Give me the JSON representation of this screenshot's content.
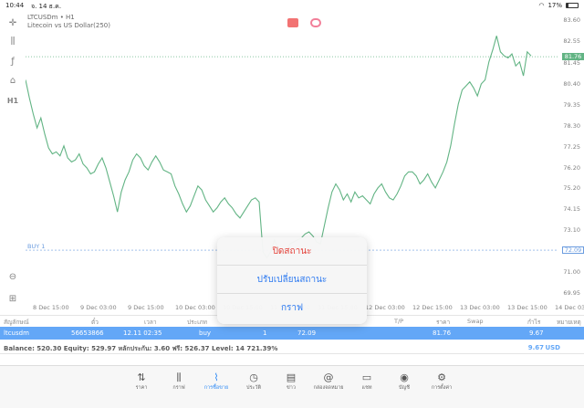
{
  "status": {
    "time": "10:44",
    "date": "จ. 14 ธ.ค.",
    "battery": "17%"
  },
  "toolbar_left": [
    {
      "name": "crosshair-icon",
      "glyph": "✛"
    },
    {
      "name": "candles-icon",
      "glyph": "⫼"
    },
    {
      "name": "indicators-icon",
      "glyph": "ƒ"
    },
    {
      "name": "objects-icon",
      "glyph": "⌂"
    },
    {
      "name": "timeframe-button",
      "glyph": "H1"
    },
    {
      "name": "zoom-icon",
      "glyph": "⊖"
    },
    {
      "name": "new-order-icon",
      "glyph": "⊞"
    }
  ],
  "chart": {
    "symbol": "LTCUSDm • H1",
    "description": "Litecoin vs US Dollar(250)",
    "current_price": "81.76",
    "buy_label": "BUY 1",
    "buy_price": "72.09",
    "price_ticks": [
      "83.60",
      "82.55",
      "81.45",
      "80.40",
      "79.35",
      "78.30",
      "77.25",
      "76.20",
      "75.20",
      "74.15",
      "73.10",
      "72.05",
      "71.00",
      "69.95"
    ],
    "time_ticks": [
      "8 Dec 15:00",
      "9 Dec 03:00",
      "9 Dec 15:00",
      "10 Dec 03:00",
      "10 Dec 15:00",
      "11 Dec 03:00",
      "11 Dec 15:00",
      "12 Dec 03:00",
      "12 Dec 15:00",
      "13 Dec 03:00",
      "13 Dec 15:00",
      "14 Dec 03:00"
    ],
    "line_color": "#2e9b5b",
    "buy_color": "#3a7bd5"
  },
  "chart_data": {
    "type": "line",
    "ylim": [
      69.4,
      84.0
    ],
    "values": [
      80.6,
      79.7,
      78.9,
      78.2,
      78.7,
      77.9,
      77.2,
      76.9,
      77.0,
      76.8,
      77.3,
      76.7,
      76.5,
      76.6,
      76.9,
      76.4,
      76.2,
      75.9,
      76.0,
      76.4,
      76.7,
      76.2,
      75.5,
      74.8,
      74.0,
      75.0,
      75.6,
      76.0,
      76.6,
      76.9,
      76.7,
      76.3,
      76.1,
      76.5,
      76.8,
      76.5,
      76.1,
      76.0,
      75.9,
      75.3,
      74.9,
      74.4,
      74.0,
      74.3,
      74.8,
      75.3,
      75.1,
      74.6,
      74.3,
      74.0,
      74.2,
      74.5,
      74.7,
      74.4,
      74.2,
      73.9,
      73.7,
      74.0,
      74.3,
      74.6,
      74.7,
      74.5,
      72.0,
      71.7,
      72.0,
      72.6,
      72.2,
      71.8,
      72.1,
      72.4,
      72.5,
      72.6,
      72.7,
      72.9,
      73.0,
      72.8,
      72.5,
      72.4,
      73.3,
      74.2,
      75.0,
      75.4,
      75.1,
      74.6,
      74.9,
      74.5,
      75.0,
      74.7,
      74.8,
      74.6,
      74.4,
      74.9,
      75.2,
      75.4,
      75.0,
      74.7,
      74.6,
      74.9,
      75.3,
      75.8,
      76.0,
      76.0,
      75.8,
      75.4,
      75.6,
      75.9,
      75.5,
      75.2,
      75.6,
      76.0,
      76.5,
      77.3,
      78.4,
      79.4,
      80.1,
      80.3,
      80.5,
      80.2,
      79.8,
      80.4,
      80.6,
      81.5,
      82.1,
      82.8,
      82.0,
      81.8,
      81.7,
      81.9,
      81.3,
      81.5,
      80.8,
      82.0,
      81.8
    ]
  },
  "trade_header": [
    "สัญลักษณ์",
    "ตั๋ว",
    "เวลา",
    "ประเภท",
    "",
    "",
    "",
    "T/P",
    "ราคา",
    "Swap",
    "กำไร",
    "หมายเหตุ"
  ],
  "trade_row": {
    "symbol": "ltcusdm",
    "ticket": "56653866",
    "time": "12.11 02:35",
    "type": "buy",
    "volume": "1",
    "open_price": "72.09",
    "price": "81.76",
    "profit": "9.67"
  },
  "balance": {
    "text": "Balance: 520.30 Equity: 529.97 หลักประกัน: 3.60 ฟรี: 526.37 Level: 14 721.39%",
    "profit": "9.67",
    "currency": "USD"
  },
  "popup": {
    "close_position": "ปิดสถานะ",
    "modify_position": "ปรับเปลี่ยนสถานะ",
    "chart": "กราฟ"
  },
  "tabs": [
    {
      "label": "ราคา",
      "icon": "quotes-icon",
      "glyph": "⇅"
    },
    {
      "label": "กราฟ",
      "icon": "chart-icon",
      "glyph": "⫼"
    },
    {
      "label": "การซื้อขาย",
      "icon": "trade-icon",
      "glyph": "⌇"
    },
    {
      "label": "ประวัติ",
      "icon": "history-icon",
      "glyph": "◷"
    },
    {
      "label": "ข่าว",
      "icon": "news-icon",
      "glyph": "▤"
    },
    {
      "label": "กล่องจดหมาย",
      "icon": "mailbox-icon",
      "glyph": "@"
    },
    {
      "label": "แชท",
      "icon": "chat-icon",
      "glyph": "▭"
    },
    {
      "label": "บัญชี",
      "icon": "account-icon",
      "glyph": "◉"
    },
    {
      "label": "การตั้งค่า",
      "icon": "settings-icon",
      "glyph": "⚙"
    }
  ]
}
